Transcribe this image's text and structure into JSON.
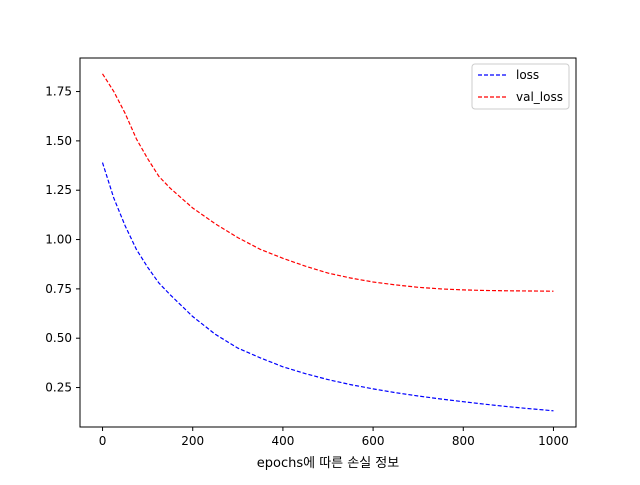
{
  "chart_data": {
    "type": "line",
    "title": "",
    "xlabel": "epochs에 따른 손실 정보",
    "ylabel": "",
    "xlim": [
      -50,
      1050
    ],
    "ylim": [
      0.05,
      1.92
    ],
    "xticks": [
      0,
      200,
      400,
      600,
      800,
      1000
    ],
    "yticks": [
      0.25,
      0.5,
      0.75,
      1.0,
      1.25,
      1.5,
      1.75
    ],
    "xtick_labels": [
      "0",
      "200",
      "400",
      "600",
      "800",
      "1000"
    ],
    "ytick_labels": [
      "0.25",
      "0.50",
      "0.75",
      "1.00",
      "1.25",
      "1.50",
      "1.75"
    ],
    "grid": false,
    "legend_position": "top-right",
    "x": [
      0,
      25,
      50,
      75,
      100,
      125,
      150,
      200,
      250,
      300,
      350,
      400,
      450,
      500,
      550,
      600,
      650,
      700,
      750,
      800,
      850,
      900,
      950,
      1000
    ],
    "series": [
      {
        "name": "loss",
        "color": "#0000ff",
        "style": "dashed",
        "values": [
          1.39,
          1.21,
          1.07,
          0.95,
          0.86,
          0.78,
          0.72,
          0.61,
          0.52,
          0.45,
          0.4,
          0.355,
          0.32,
          0.29,
          0.265,
          0.243,
          0.224,
          0.207,
          0.192,
          0.178,
          0.165,
          0.153,
          0.142,
          0.132
        ]
      },
      {
        "name": "val_loss",
        "color": "#ff0000",
        "style": "dashed",
        "values": [
          1.84,
          1.75,
          1.64,
          1.51,
          1.41,
          1.32,
          1.26,
          1.16,
          1.08,
          1.01,
          0.95,
          0.905,
          0.865,
          0.83,
          0.805,
          0.785,
          0.77,
          0.758,
          0.75,
          0.745,
          0.742,
          0.74,
          0.739,
          0.738
        ]
      }
    ]
  }
}
